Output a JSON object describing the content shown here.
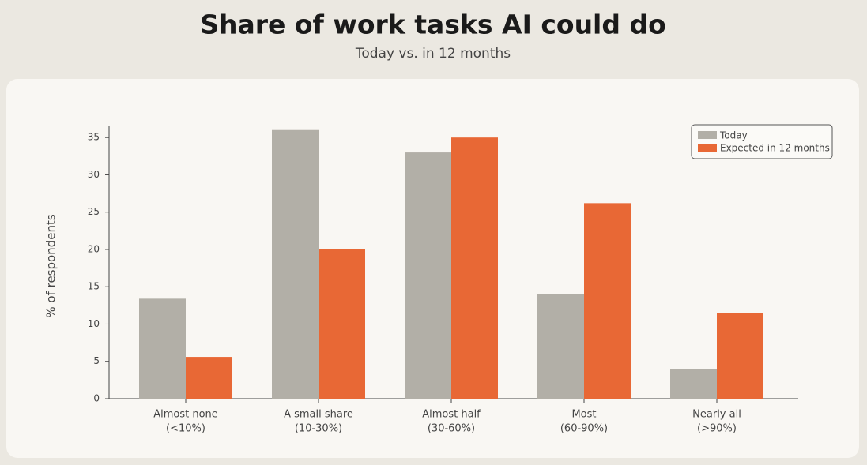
{
  "chart_data": {
    "type": "bar",
    "title": "Share of work tasks AI could do",
    "subtitle": "Today vs. in 12 months",
    "y_label": "% of respondents",
    "categories": [
      [
        "Almost none",
        "(<10%)"
      ],
      [
        "A small share",
        "(10-30%)"
      ],
      [
        "Almost half",
        "(30-60%)"
      ],
      [
        "Most",
        "(60-90%)"
      ],
      [
        "Nearly all",
        "(>90%)"
      ]
    ],
    "series": [
      {
        "name": "Today",
        "color": "#b2afa7",
        "values": [
          13.4,
          36,
          33,
          14,
          4
        ]
      },
      {
        "name": "Expected in 12 months",
        "color": "#e86835",
        "values": [
          5.6,
          20,
          35,
          26.2,
          11.5
        ]
      }
    ],
    "ylim": [
      0,
      36.5
    ],
    "yticks": [
      0,
      5,
      10,
      15,
      20,
      25,
      30,
      35
    ],
    "legend": "upper right"
  }
}
